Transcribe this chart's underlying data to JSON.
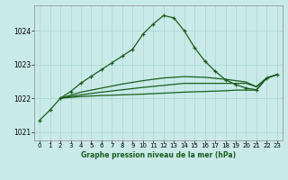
{
  "title": "Graphe pression niveau de la mer (hPa)",
  "background_color": "#caeaea",
  "grid_color": "#aad4cc",
  "line_color": "#1a5c1a",
  "xlim": [
    -0.5,
    23.5
  ],
  "ylim": [
    1020.75,
    1024.75
  ],
  "yticks": [
    1021,
    1022,
    1023,
    1024
  ],
  "xticks": [
    0,
    1,
    2,
    3,
    4,
    5,
    6,
    7,
    8,
    9,
    10,
    11,
    12,
    13,
    14,
    15,
    16,
    17,
    18,
    19,
    20,
    21,
    22,
    23
  ],
  "main_line": [
    [
      0,
      1021.35
    ],
    [
      1,
      1021.65
    ],
    [
      2,
      1022.0
    ],
    [
      3,
      1022.2
    ],
    [
      4,
      1022.45
    ],
    [
      5,
      1022.65
    ],
    [
      6,
      1022.85
    ],
    [
      7,
      1023.05
    ],
    [
      8,
      1023.25
    ],
    [
      9,
      1023.45
    ],
    [
      10,
      1023.9
    ],
    [
      11,
      1024.2
    ],
    [
      12,
      1024.45
    ],
    [
      13,
      1024.38
    ],
    [
      14,
      1024.0
    ],
    [
      15,
      1023.5
    ],
    [
      16,
      1023.1
    ],
    [
      17,
      1022.8
    ],
    [
      18,
      1022.55
    ],
    [
      19,
      1022.4
    ],
    [
      20,
      1022.3
    ],
    [
      21,
      1022.25
    ],
    [
      22,
      1022.6
    ],
    [
      23,
      1022.7
    ]
  ],
  "flat_lines": [
    [
      [
        2,
        1022.0
      ],
      [
        4,
        1022.05
      ],
      [
        6,
        1022.08
      ],
      [
        8,
        1022.1
      ],
      [
        10,
        1022.12
      ],
      [
        12,
        1022.15
      ],
      [
        14,
        1022.18
      ],
      [
        16,
        1022.2
      ],
      [
        18,
        1022.22
      ],
      [
        19,
        1022.24
      ],
      [
        20,
        1022.24
      ],
      [
        21,
        1022.24
      ],
      [
        22,
        1022.6
      ],
      [
        23,
        1022.7
      ]
    ],
    [
      [
        2,
        1022.0
      ],
      [
        4,
        1022.1
      ],
      [
        6,
        1022.18
      ],
      [
        8,
        1022.25
      ],
      [
        10,
        1022.32
      ],
      [
        12,
        1022.38
      ],
      [
        14,
        1022.44
      ],
      [
        16,
        1022.44
      ],
      [
        18,
        1022.44
      ],
      [
        19,
        1022.44
      ],
      [
        20,
        1022.44
      ],
      [
        21,
        1022.34
      ],
      [
        22,
        1022.6
      ],
      [
        23,
        1022.7
      ]
    ],
    [
      [
        2,
        1022.0
      ],
      [
        4,
        1022.18
      ],
      [
        6,
        1022.3
      ],
      [
        8,
        1022.42
      ],
      [
        10,
        1022.52
      ],
      [
        12,
        1022.6
      ],
      [
        14,
        1022.64
      ],
      [
        16,
        1022.62
      ],
      [
        18,
        1022.56
      ],
      [
        19,
        1022.52
      ],
      [
        20,
        1022.48
      ],
      [
        21,
        1022.34
      ],
      [
        22,
        1022.6
      ],
      [
        23,
        1022.7
      ]
    ]
  ]
}
